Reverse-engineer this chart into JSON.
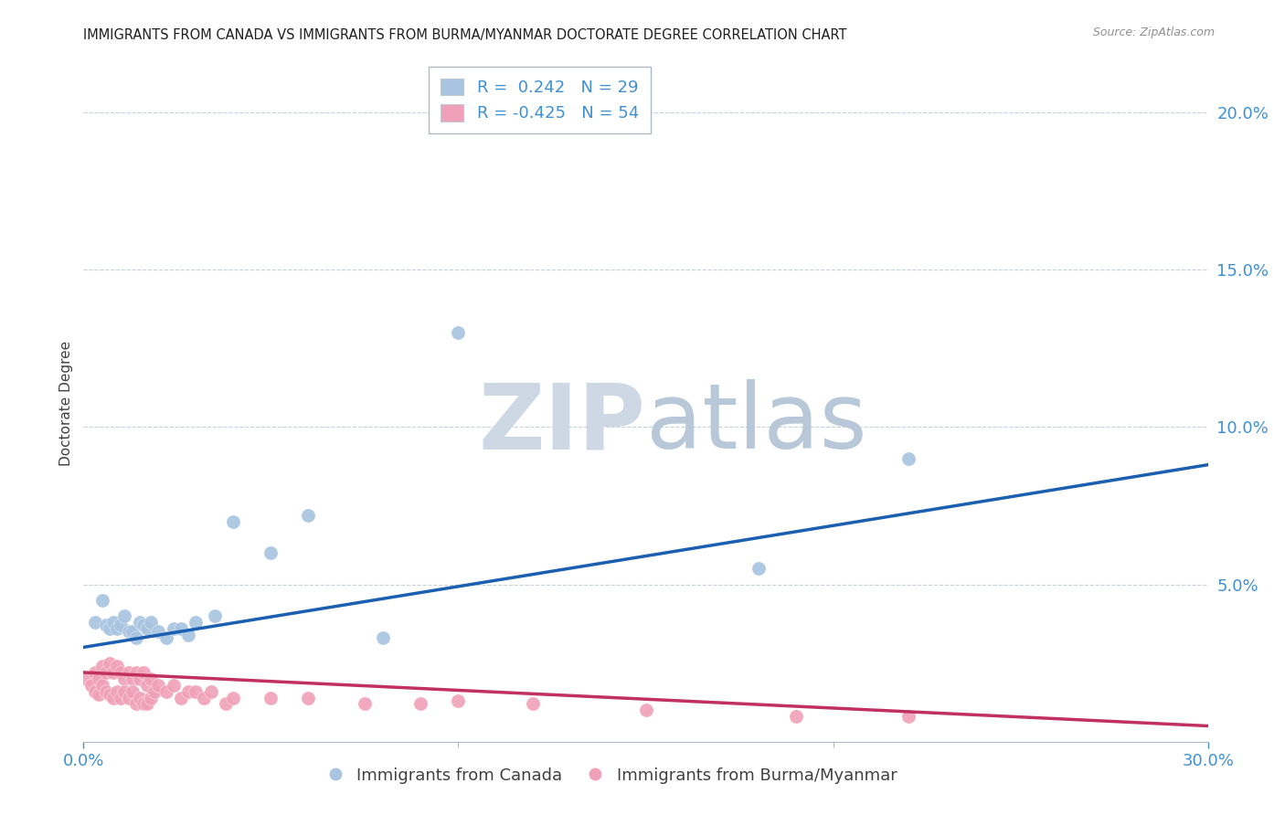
{
  "title": "IMMIGRANTS FROM CANADA VS IMMIGRANTS FROM BURMA/MYANMAR DOCTORATE DEGREE CORRELATION CHART",
  "source": "Source: ZipAtlas.com",
  "ylabel": "Doctorate Degree",
  "right_yticks": [
    "20.0%",
    "15.0%",
    "10.0%",
    "5.0%"
  ],
  "right_ytick_vals": [
    0.2,
    0.15,
    0.1,
    0.05
  ],
  "legend_canada_R": "0.242",
  "legend_canada_N": "29",
  "legend_burma_R": "-0.425",
  "legend_burma_N": "54",
  "canada_color": "#a8c4e0",
  "canada_line_color": "#1a5fb0",
  "burma_color": "#f0a0b8",
  "burma_line_color": "#c03060",
  "watermark_zip_color": "#cdd8e4",
  "watermark_atlas_color": "#b8c8d8",
  "background_color": "#ffffff",
  "title_color": "#202020",
  "right_axis_color": "#4090d0",
  "bottom_axis_color": "#4090d0",
  "grid_color": "#c8d0d8",
  "canada_scatter_x": [
    0.003,
    0.005,
    0.006,
    0.007,
    0.008,
    0.009,
    0.01,
    0.011,
    0.012,
    0.013,
    0.014,
    0.015,
    0.016,
    0.017,
    0.018,
    0.02,
    0.022,
    0.024,
    0.026,
    0.028,
    0.03,
    0.035,
    0.04,
    0.05,
    0.06,
    0.08,
    0.1,
    0.18,
    0.22
  ],
  "canada_scatter_y": [
    0.038,
    0.045,
    0.037,
    0.036,
    0.038,
    0.036,
    0.037,
    0.04,
    0.035,
    0.035,
    0.033,
    0.038,
    0.037,
    0.036,
    0.038,
    0.035,
    0.033,
    0.036,
    0.036,
    0.034,
    0.038,
    0.04,
    0.07,
    0.06,
    0.072,
    0.033,
    0.13,
    0.055,
    0.09
  ],
  "burma_scatter_x": [
    0.001,
    0.002,
    0.003,
    0.003,
    0.004,
    0.004,
    0.005,
    0.005,
    0.006,
    0.006,
    0.007,
    0.007,
    0.008,
    0.008,
    0.009,
    0.009,
    0.01,
    0.01,
    0.011,
    0.011,
    0.012,
    0.012,
    0.013,
    0.013,
    0.014,
    0.014,
    0.015,
    0.015,
    0.016,
    0.016,
    0.017,
    0.017,
    0.018,
    0.018,
    0.019,
    0.02,
    0.022,
    0.024,
    0.026,
    0.028,
    0.03,
    0.032,
    0.034,
    0.038,
    0.04,
    0.05,
    0.06,
    0.075,
    0.09,
    0.1,
    0.12,
    0.15,
    0.19,
    0.22
  ],
  "burma_scatter_y": [
    0.02,
    0.018,
    0.022,
    0.016,
    0.02,
    0.015,
    0.024,
    0.018,
    0.022,
    0.016,
    0.025,
    0.015,
    0.022,
    0.014,
    0.024,
    0.016,
    0.022,
    0.014,
    0.02,
    0.016,
    0.022,
    0.014,
    0.02,
    0.016,
    0.022,
    0.012,
    0.02,
    0.014,
    0.022,
    0.012,
    0.018,
    0.012,
    0.02,
    0.014,
    0.016,
    0.018,
    0.016,
    0.018,
    0.014,
    0.016,
    0.016,
    0.014,
    0.016,
    0.012,
    0.014,
    0.014,
    0.014,
    0.012,
    0.012,
    0.013,
    0.012,
    0.01,
    0.008,
    0.008
  ],
  "xlim": [
    0.0,
    0.3
  ],
  "ylim": [
    0.0,
    0.215
  ],
  "canada_trend_x": [
    0.0,
    0.3
  ],
  "canada_trend_y": [
    0.03,
    0.088
  ],
  "burma_trend_x": [
    0.0,
    0.3
  ],
  "burma_trend_y": [
    0.022,
    0.005
  ]
}
